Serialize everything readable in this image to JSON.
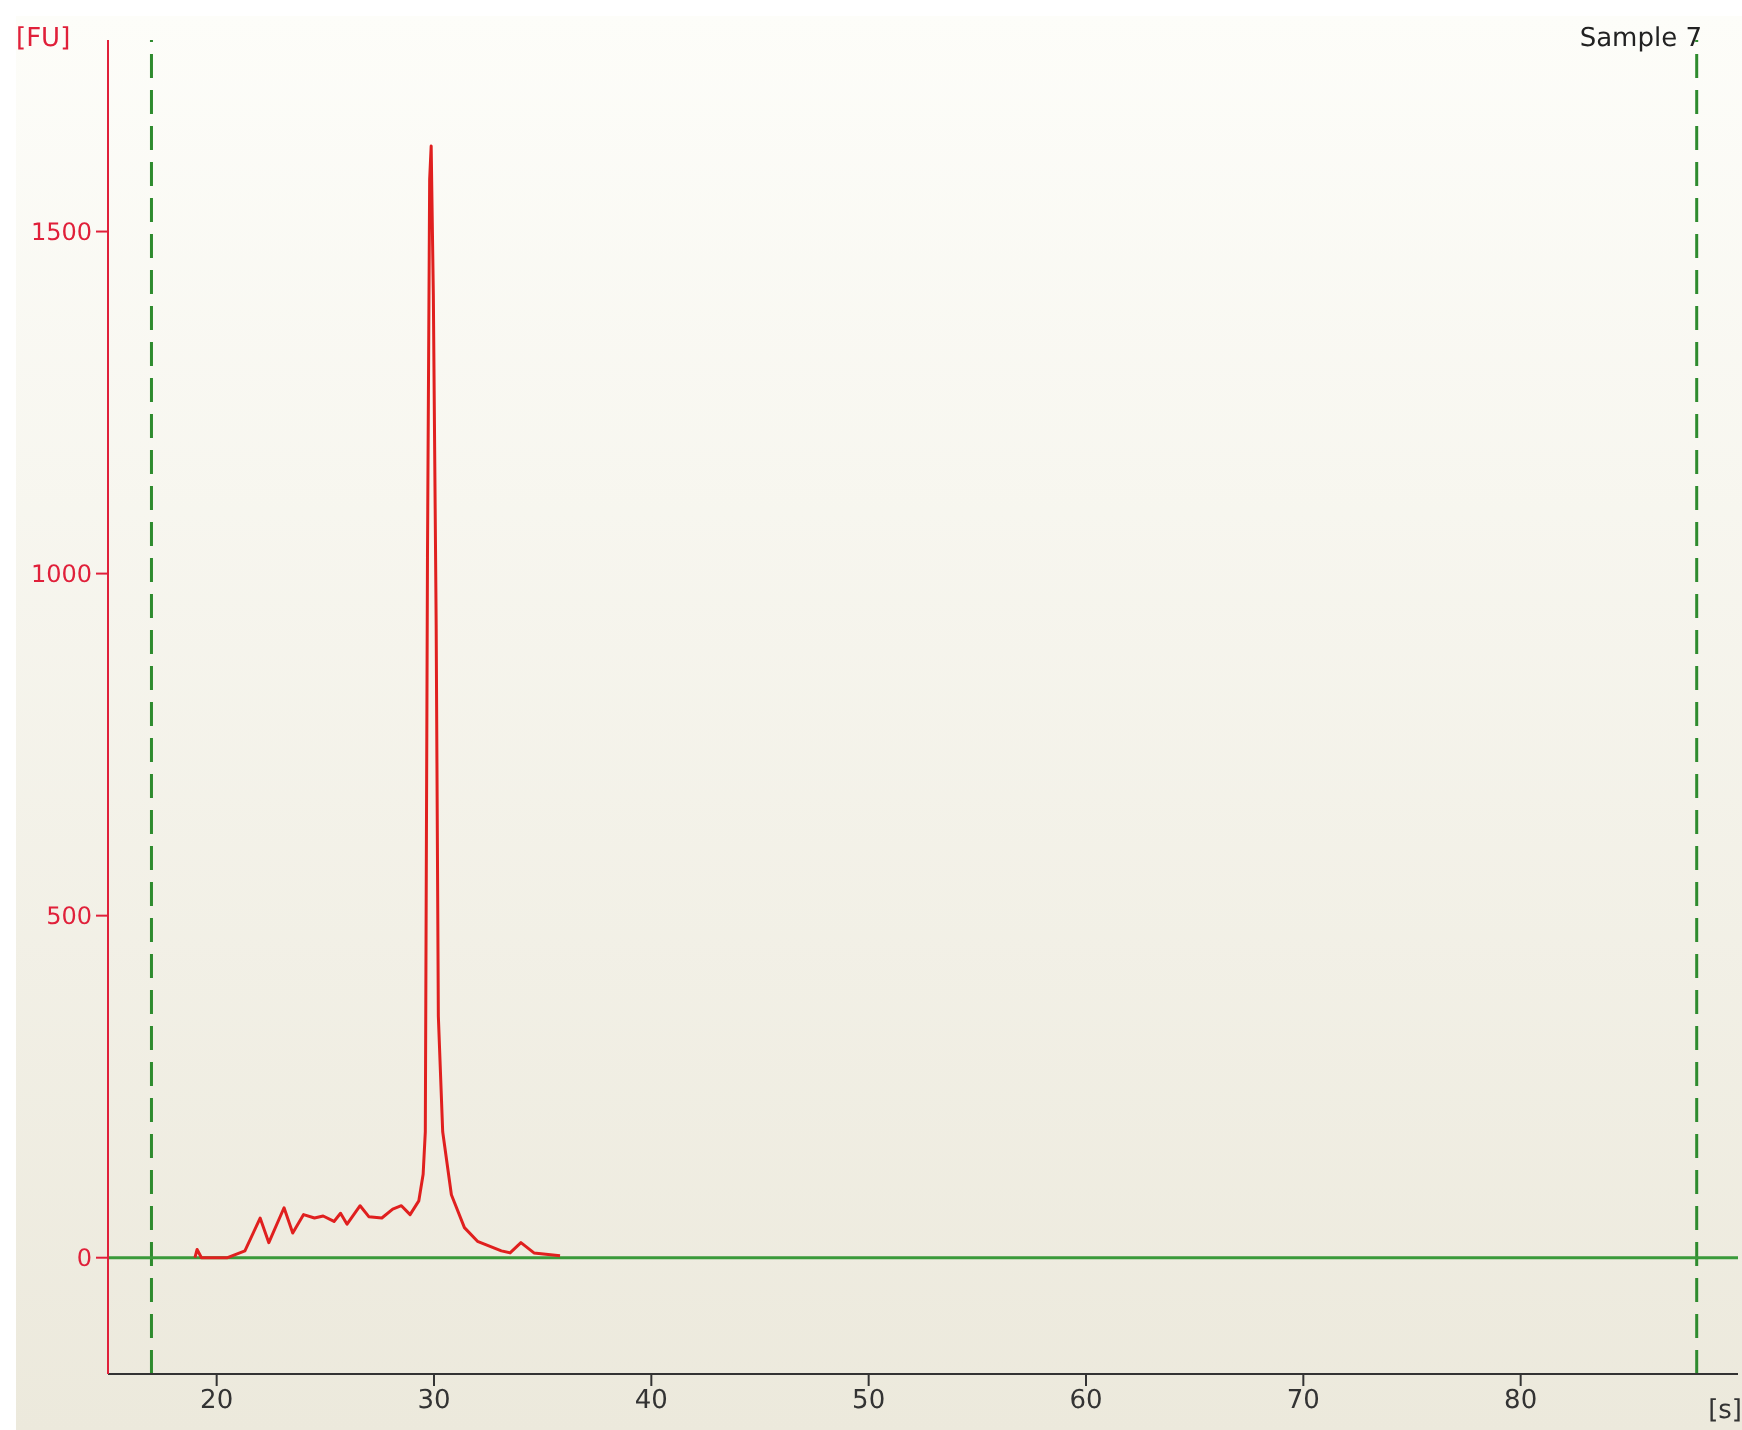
{
  "chart_data": {
    "type": "line",
    "title": "Sample 7",
    "xlabel": "[s]",
    "ylabel": "[FU]",
    "xlim": [
      15,
      90
    ],
    "xticks": [
      20,
      30,
      40,
      50,
      60,
      70,
      80
    ],
    "ylim": [
      -170,
      1780
    ],
    "yticks": [
      0,
      500,
      1000,
      1500
    ],
    "series": [
      {
        "color": "#e0201f",
        "x": [
          19.0,
          19.1,
          19.3,
          20.5,
          21.3,
          22.0,
          22.4,
          23.1,
          23.5,
          24.0,
          24.5,
          24.9,
          25.4,
          25.7,
          26.0,
          26.6,
          27.0,
          27.6,
          28.1,
          28.5,
          28.9,
          29.3,
          29.5,
          29.6,
          29.7,
          29.8,
          29.87,
          29.97,
          30.1,
          30.2,
          30.4,
          30.8,
          31.4,
          32.0,
          33.1,
          33.5,
          34.0,
          34.6,
          35.8
        ],
        "values": [
          0,
          12,
          0,
          0,
          10,
          58,
          22,
          73,
          36,
          63,
          58,
          61,
          53,
          65,
          49,
          76,
          60,
          58,
          71,
          76,
          63,
          83,
          122,
          184,
          1024,
          1576,
          1625,
          1406,
          925,
          353,
          184,
          92,
          44,
          24,
          10,
          7,
          22,
          7,
          3
        ]
      }
    ],
    "ref_lines": [
      {
        "axis": "x",
        "value": 17,
        "color": "#2e8b2e",
        "line_style": "dashed"
      },
      {
        "axis": "x",
        "value": 88.1,
        "color": "#2e8b2e",
        "line_style": "dashed"
      },
      {
        "axis": "y",
        "value": 0,
        "color": "#3a9a3a",
        "line_style": "solid"
      }
    ],
    "grid": false,
    "legend": false,
    "marker": "none",
    "line_style": "solid"
  }
}
